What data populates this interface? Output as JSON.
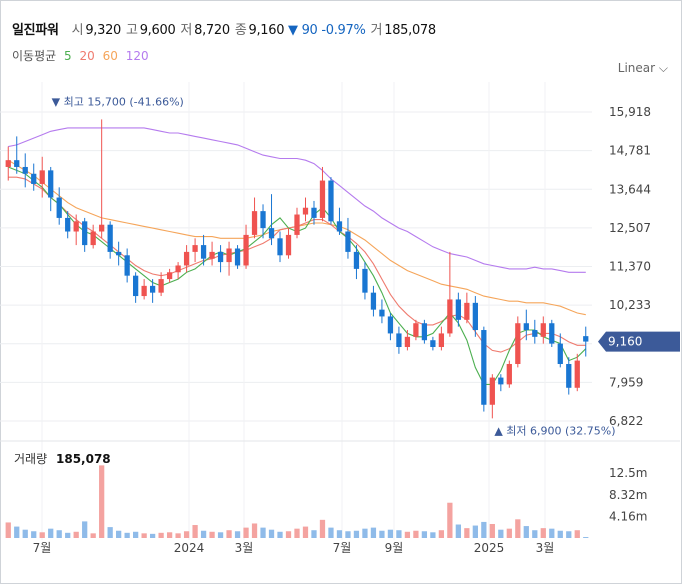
{
  "header": {
    "name": "일진파워",
    "open_label": "시",
    "open": "9,320",
    "high_label": "고",
    "high": "9,600",
    "low_label": "저",
    "low": "8,720",
    "close_label": "종",
    "close": "9,160",
    "change": "▼ 90 -0.97%",
    "volume_label": "거",
    "volume": "185,078"
  },
  "ma_legend": {
    "label": "이동평균",
    "items": [
      "5",
      "20",
      "60",
      "120"
    ]
  },
  "scale_button": "Linear",
  "colors": {
    "up": "#ef5350",
    "down": "#1976d2",
    "ma5": "#4caf50",
    "ma20": "#ef7b6f",
    "ma60": "#f5a55a",
    "ma120": "#b57bee",
    "price_tag": "#3c5a99"
  },
  "chart_data": {
    "type": "candlestick",
    "y_ticks": [
      "15,918",
      "14,781",
      "13,644",
      "12,507",
      "11,370",
      "10,233",
      "9,160",
      "7,959",
      "6,822"
    ],
    "ylim": [
      6822,
      15918
    ],
    "x_ticks": [
      "7월",
      "2024",
      "3월",
      "7월",
      "9월",
      "2025",
      "3월"
    ],
    "current_price": "9,160",
    "high_annotation": "▼ 최고 15,700 (-41.66%)",
    "low_annotation": "▲ 최저 6,900 (32.75%)",
    "volume_label": "거래량",
    "volume_value": "185,078",
    "volume_ticks": [
      "12.5m",
      "8.32m",
      "4.16m"
    ],
    "volume_max": 16000000,
    "series_ma": {
      "ma5": [
        14300,
        14200,
        14100,
        13900,
        13700,
        13400,
        13200,
        12900,
        12600,
        12400,
        12300,
        12100,
        11900,
        11700,
        11500,
        11300,
        11100,
        10900,
        10800,
        10900,
        11000,
        11200,
        11300,
        11500,
        11700,
        11800,
        11700,
        11800,
        11900,
        12100,
        12300,
        12600,
        12800,
        12500,
        12400,
        12500,
        12900,
        13100,
        12800,
        12400,
        12200,
        11900,
        11500,
        11100,
        10600,
        10000,
        9700,
        9400,
        9300,
        9300,
        9400,
        9700,
        10000,
        9700,
        9200,
        8400,
        7900,
        7900,
        8300,
        8900,
        9400,
        9500,
        9500,
        9300,
        9200,
        9100,
        8600,
        8700,
        8950
      ],
      "ma20": [
        14000,
        14000,
        13950,
        13800,
        13650,
        13400,
        13200,
        12950,
        12750,
        12550,
        12400,
        12200,
        12000,
        11800,
        11600,
        11400,
        11250,
        11150,
        11100,
        11150,
        11250,
        11350,
        11450,
        11550,
        11600,
        11700,
        11750,
        11800,
        11850,
        11950,
        12050,
        12200,
        12450,
        12500,
        12550,
        12650,
        12750,
        12750,
        12600,
        12400,
        12250,
        12050,
        11800,
        11450,
        11000,
        10550,
        10200,
        9950,
        9750,
        9650,
        9650,
        9750,
        9900,
        9950,
        9800,
        9450,
        9100,
        8900,
        8850,
        8950,
        9150,
        9350,
        9400,
        9400,
        9400,
        9300,
        9150,
        9050,
        9050
      ],
      "ma60": [
        14500,
        14350,
        14200,
        14050,
        13850,
        13650,
        13450,
        13250,
        13100,
        13000,
        12900,
        12800,
        12750,
        12700,
        12650,
        12600,
        12550,
        12500,
        12450,
        12400,
        12350,
        12300,
        12250,
        12250,
        12250,
        12200,
        12200,
        12200,
        12200,
        12250,
        12300,
        12400,
        12450,
        12500,
        12550,
        12600,
        12650,
        12650,
        12600,
        12550,
        12450,
        12300,
        12150,
        11950,
        11750,
        11550,
        11400,
        11250,
        11150,
        11050,
        10950,
        10850,
        10800,
        10750,
        10700,
        10600,
        10500,
        10450,
        10400,
        10350,
        10350,
        10300,
        10300,
        10300,
        10250,
        10200,
        10100,
        10000,
        9950
      ],
      "ma120": [
        14900,
        14950,
        15050,
        15150,
        15250,
        15350,
        15400,
        15450,
        15450,
        15450,
        15450,
        15450,
        15450,
        15450,
        15450,
        15450,
        15450,
        15400,
        15350,
        15300,
        15300,
        15250,
        15200,
        15150,
        15100,
        15050,
        15000,
        14950,
        14850,
        14750,
        14650,
        14600,
        14550,
        14550,
        14550,
        14500,
        14400,
        14200,
        13950,
        13750,
        13550,
        13350,
        13150,
        13000,
        12800,
        12650,
        12500,
        12400,
        12250,
        12100,
        11950,
        11850,
        11750,
        11700,
        11650,
        11550,
        11450,
        11400,
        11350,
        11300,
        11300,
        11300,
        11350,
        11300,
        11300,
        11250,
        11200,
        11200,
        11200
      ]
    },
    "candles": [
      [
        14300,
        14900,
        13900,
        14500
      ],
      [
        14500,
        15200,
        14100,
        14300
      ],
      [
        14300,
        14700,
        13700,
        14100
      ],
      [
        14100,
        14400,
        13600,
        13800
      ],
      [
        13800,
        14600,
        13400,
        14200
      ],
      [
        14200,
        14300,
        13000,
        13400
      ],
      [
        13400,
        13700,
        12600,
        12800
      ],
      [
        12800,
        13000,
        12200,
        12400
      ],
      [
        12400,
        12900,
        12000,
        12700
      ],
      [
        12700,
        12800,
        11800,
        12000
      ],
      [
        12000,
        12600,
        11900,
        12400
      ],
      [
        12400,
        15700,
        12200,
        12600
      ],
      [
        12600,
        12700,
        11600,
        11800
      ],
      [
        11800,
        12100,
        11400,
        11700
      ],
      [
        11700,
        11900,
        10900,
        11100
      ],
      [
        11100,
        11200,
        10300,
        10500
      ],
      [
        10500,
        11000,
        10400,
        10800
      ],
      [
        10800,
        11000,
        10300,
        10600
      ],
      [
        10600,
        11200,
        10500,
        11000
      ],
      [
        11000,
        11300,
        10900,
        11200
      ],
      [
        11200,
        11500,
        11000,
        11400
      ],
      [
        11400,
        12000,
        11200,
        11800
      ],
      [
        11800,
        12200,
        11500,
        12000
      ],
      [
        12000,
        12300,
        11400,
        11600
      ],
      [
        11600,
        12100,
        11400,
        11800
      ],
      [
        11800,
        12000,
        11200,
        11500
      ],
      [
        11500,
        12100,
        11100,
        11900
      ],
      [
        11900,
        12000,
        11300,
        11400
      ],
      [
        11400,
        12600,
        11300,
        12300
      ],
      [
        12300,
        13400,
        12200,
        13000
      ],
      [
        13000,
        13200,
        12200,
        12500
      ],
      [
        12500,
        13500,
        12000,
        12200
      ],
      [
        12200,
        12400,
        11500,
        11700
      ],
      [
        11700,
        12500,
        11600,
        12300
      ],
      [
        12300,
        13100,
        12200,
        12900
      ],
      [
        12900,
        13400,
        12700,
        13100
      ],
      [
        13100,
        13300,
        12600,
        12800
      ],
      [
        12800,
        14300,
        12700,
        13900
      ],
      [
        13900,
        14000,
        12600,
        12700
      ],
      [
        12700,
        13100,
        12300,
        12400
      ],
      [
        12400,
        12800,
        11600,
        11800
      ],
      [
        11800,
        12000,
        11000,
        11300
      ],
      [
        11300,
        11500,
        10400,
        10600
      ],
      [
        10600,
        10800,
        9900,
        10100
      ],
      [
        10100,
        10400,
        9700,
        9900
      ],
      [
        9900,
        10000,
        9200,
        9400
      ],
      [
        9400,
        9600,
        8800,
        9000
      ],
      [
        9000,
        9500,
        8900,
        9300
      ],
      [
        9300,
        9800,
        9200,
        9700
      ],
      [
        9700,
        9800,
        9100,
        9200
      ],
      [
        9200,
        9300,
        8900,
        9000
      ],
      [
        9000,
        9600,
        8900,
        9400
      ],
      [
        9400,
        11800,
        9300,
        10400
      ],
      [
        10400,
        10600,
        9600,
        9800
      ],
      [
        9800,
        10600,
        9700,
        10300
      ],
      [
        10300,
        10500,
        9300,
        9500
      ],
      [
        9500,
        9600,
        7100,
        7300
      ],
      [
        7300,
        8200,
        6900,
        8100
      ],
      [
        8100,
        8200,
        7700,
        7900
      ],
      [
        7900,
        8600,
        7800,
        8500
      ],
      [
        8500,
        9900,
        8400,
        9700
      ],
      [
        9700,
        10100,
        9200,
        9500
      ],
      [
        9500,
        9800,
        9100,
        9300
      ],
      [
        9300,
        9900,
        9100,
        9700
      ],
      [
        9700,
        9800,
        9000,
        9100
      ],
      [
        9100,
        9400,
        8400,
        8500
      ],
      [
        8500,
        8700,
        7600,
        7800
      ],
      [
        7800,
        8800,
        7700,
        8600
      ],
      [
        9320,
        9600,
        8720,
        9160
      ]
    ],
    "volume": [
      3000000,
      2200000,
      1600000,
      1300000,
      1100000,
      1800000,
      1500000,
      1000000,
      1200000,
      3200000,
      900000,
      14000000,
      2100000,
      1400000,
      1000000,
      1200000,
      900000,
      800000,
      1000000,
      1100000,
      900000,
      1300000,
      2500000,
      1400000,
      1200000,
      1100000,
      1500000,
      1300000,
      2000000,
      2800000,
      2000000,
      1600000,
      1200000,
      1300000,
      1800000,
      2200000,
      1500000,
      3500000,
      2000000,
      1500000,
      1300000,
      1400000,
      1800000,
      2000000,
      1400000,
      1600000,
      1500000,
      1200000,
      1400000,
      1300000,
      1100000,
      1500000,
      6800000,
      2600000,
      1900000,
      2400000,
      3100000,
      2700000,
      1600000,
      1800000,
      3600000,
      2300000,
      1500000,
      1900000,
      1800000,
      1400000,
      1300000,
      1500000,
      185078
    ]
  }
}
